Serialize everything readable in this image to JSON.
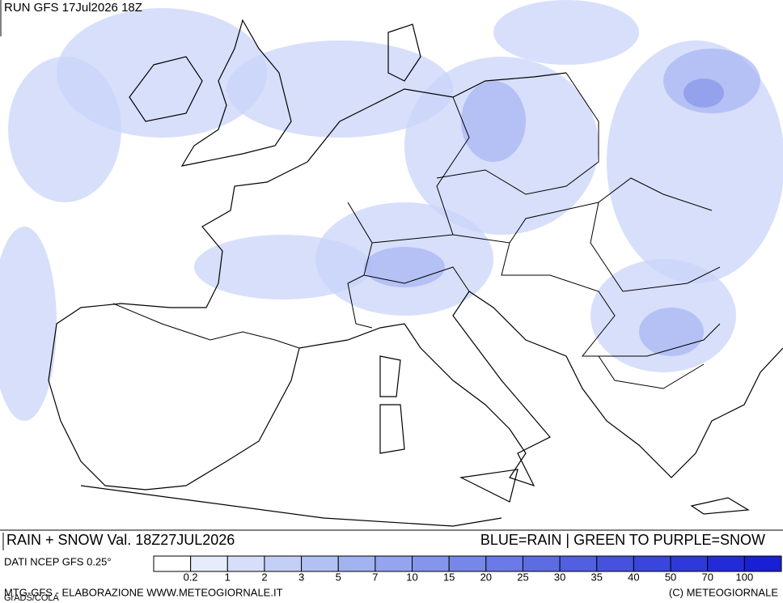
{
  "header": {
    "run": "RUN GFS 17Jul2026 18Z"
  },
  "footer": {
    "field": "RAIN + SNOW Val. 18Z27JUL2026",
    "key": "BLUE=RAIN | GREEN TO PURPLE=SNOW",
    "source": "DATI NCEP GFS 0.25°",
    "credit": "MTG-GFS - ELABORAZIONE WWW.METEOGIORNALE.IT",
    "grads": "GrADS/COLA",
    "copyright": "(C) METEOGIORNALE"
  },
  "legend": {
    "labels": [
      0.2,
      1,
      2,
      3,
      5,
      7,
      10,
      15,
      20,
      25,
      30,
      35,
      40,
      50,
      70,
      100
    ],
    "colors": [
      "#ffffff",
      "#e6ecfc",
      "#d6def9",
      "#c4cff6",
      "#b3c0f3",
      "#a3b2f0",
      "#94a4ee",
      "#8595eb",
      "#7787e8",
      "#6b7ae6",
      "#5e6ce3",
      "#525fe1",
      "#4652de",
      "#3a45dc",
      "#2f38da",
      "#232bd8",
      "#1a1fd5"
    ]
  }
}
